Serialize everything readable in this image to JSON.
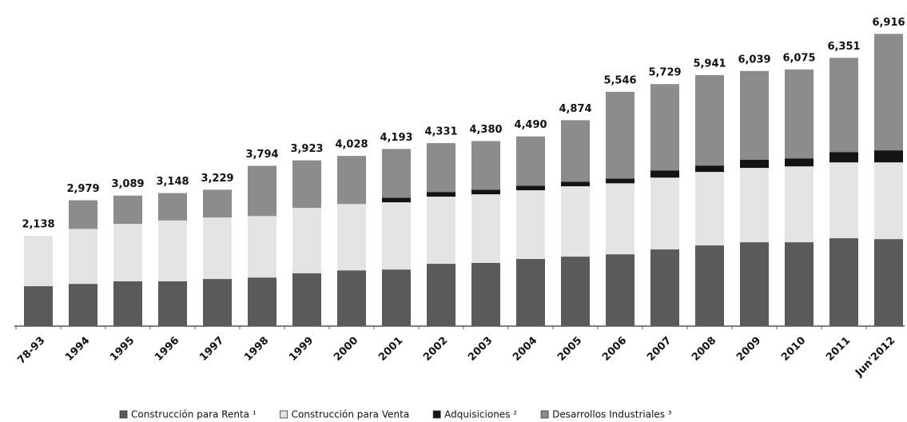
{
  "chart_data": {
    "type": "stacked_bar",
    "categories": [
      "78-93",
      "1994",
      "1995",
      "1996",
      "1997",
      "1998",
      "1999",
      "2000",
      "2001",
      "2002",
      "2003",
      "2004",
      "2005",
      "2006",
      "2007",
      "2008",
      "2009",
      "2010",
      "2011",
      "Jun'2012"
    ],
    "series": [
      {
        "name": "Construcción para Renta ¹",
        "color": "#5a5a5a",
        "values": [
          945,
          1000,
          1060,
          1060,
          1115,
          1150,
          1250,
          1320,
          1340,
          1475,
          1495,
          1590,
          1645,
          1700,
          1815,
          1910,
          1985,
          1985,
          2080,
          2060
        ]
      },
      {
        "name": "Construcción para Venta",
        "color": "#e4e4e4",
        "values": [
          1193,
          1300,
          1360,
          1440,
          1455,
          1455,
          1550,
          1570,
          1590,
          1590,
          1625,
          1625,
          1665,
          1680,
          1700,
          1740,
          1760,
          1795,
          1795,
          1815
        ]
      },
      {
        "name": "Adquisiciones ²",
        "color": "#141414",
        "values": [
          0,
          0,
          0,
          0,
          0,
          0,
          0,
          0,
          110,
          110,
          110,
          110,
          110,
          110,
          170,
          150,
          190,
          190,
          245,
          285
        ]
      },
      {
        "name": "Desarrollos Industriales ³",
        "color": "#8c8c8c",
        "values": [
          0,
          679,
          669,
          648,
          659,
          1189,
          1123,
          1138,
          1153,
          1156,
          1150,
          1165,
          1454,
          2056,
          2044,
          2141,
          2104,
          2105,
          2231,
          2756
        ]
      }
    ],
    "totals": [
      2138,
      2979,
      3089,
      3148,
      3229,
      3794,
      3923,
      4028,
      4193,
      4331,
      4380,
      4490,
      4874,
      5546,
      5729,
      5941,
      6039,
      6075,
      6351,
      6916
    ],
    "value_labels": [
      "2,138",
      "2,979",
      "3,089",
      "3,148",
      "3,229",
      "3,794",
      "3,923",
      "4,028",
      "4,193",
      "4,331",
      "4,380",
      "4,490",
      "4,874",
      "5,546",
      "5,729",
      "5,941",
      "6,039",
      "6,075",
      "6,351",
      "6,916"
    ],
    "ylim": [
      0,
      7000
    ],
    "legend": "bottom"
  }
}
